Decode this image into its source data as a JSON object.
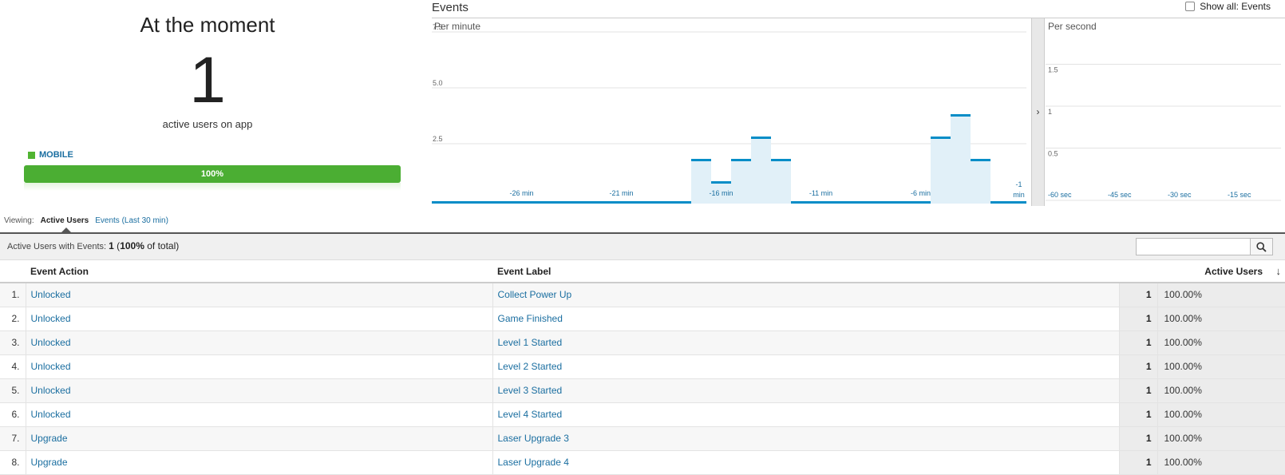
{
  "moment": {
    "title": "At the moment",
    "count": "1",
    "subtitle": "active users on app",
    "device_label": "MOBILE",
    "device_percent_label": "100%",
    "device_share": 1.0,
    "device_color": "#4bae33"
  },
  "events": {
    "title": "Events",
    "show_all_label": "Show all: Events",
    "expand_glyph": "›"
  },
  "chart_data": [
    {
      "type": "bar",
      "title": "Per minute",
      "x_tick_labels": [
        "-26 min",
        "-21 min",
        "-16 min",
        "-11 min",
        "-6 min",
        "-1 min"
      ],
      "y_tick_labels": [
        "2.5",
        "5.0",
        "7.5"
      ],
      "ylim": [
        0,
        7.5
      ],
      "x": [
        -30,
        -29,
        -28,
        -27,
        -26,
        -25,
        -24,
        -23,
        -22,
        -21,
        -20,
        -19,
        -18,
        -17,
        -16,
        -15,
        -14,
        -13,
        -12,
        -11,
        -10,
        -9,
        -8,
        -7,
        -6,
        -5,
        -4,
        -3,
        -2,
        -1
      ],
      "values": [
        0,
        0,
        0,
        0,
        0,
        0,
        0,
        0,
        0,
        0,
        0,
        0,
        0,
        2,
        1,
        2,
        3,
        2,
        0,
        0,
        0,
        0,
        0,
        0,
        0,
        3,
        4,
        2,
        0,
        0
      ],
      "color": "#058dc7",
      "fill": "#e1f0f8"
    },
    {
      "type": "bar",
      "title": "Per second",
      "x_tick_labels": [
        "-60 sec",
        "-45 sec",
        "-30 sec",
        "-15 sec"
      ],
      "y_tick_labels": [
        "0.5",
        "1",
        "1.5"
      ],
      "ylim": [
        0,
        2
      ],
      "values": [],
      "color": "#058dc7"
    }
  ],
  "viewing": {
    "label": "Viewing:",
    "tabs": [
      "Active Users",
      "Events (Last 30 min)"
    ]
  },
  "summary": {
    "label": "Active Users with Events:",
    "count": "1",
    "open": " (",
    "percent": "100%",
    "suffix": " of total)"
  },
  "table": {
    "columns": [
      "Event Action",
      "Event Label",
      "Active Users"
    ],
    "rows": [
      {
        "n": "1.",
        "action": "Unlocked",
        "label": "Collect Power Up",
        "users": "1",
        "pct": "100.00%"
      },
      {
        "n": "2.",
        "action": "Unlocked",
        "label": "Game Finished",
        "users": "1",
        "pct": "100.00%"
      },
      {
        "n": "3.",
        "action": "Unlocked",
        "label": "Level 1 Started",
        "users": "1",
        "pct": "100.00%"
      },
      {
        "n": "4.",
        "action": "Unlocked",
        "label": "Level 2 Started",
        "users": "1",
        "pct": "100.00%"
      },
      {
        "n": "5.",
        "action": "Unlocked",
        "label": "Level 3 Started",
        "users": "1",
        "pct": "100.00%"
      },
      {
        "n": "6.",
        "action": "Unlocked",
        "label": "Level 4 Started",
        "users": "1",
        "pct": "100.00%"
      },
      {
        "n": "7.",
        "action": "Upgrade",
        "label": "Laser Upgrade 3",
        "users": "1",
        "pct": "100.00%"
      },
      {
        "n": "8.",
        "action": "Upgrade",
        "label": "Laser Upgrade 4",
        "users": "1",
        "pct": "100.00%"
      }
    ]
  }
}
